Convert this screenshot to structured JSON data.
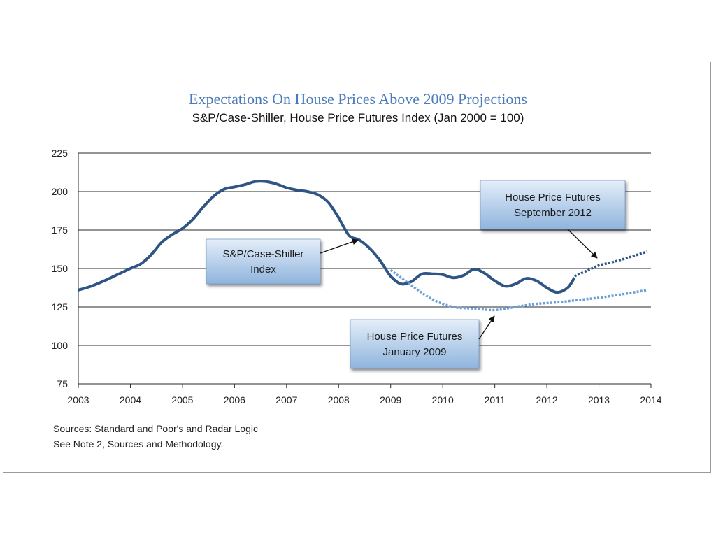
{
  "chart_data": {
    "type": "line",
    "title": "Expectations On House Prices Above 2009 Projections",
    "subtitle": "S&P/Case-Shiller, House Price Futures Index (Jan 2000 = 100)",
    "xlim": [
      2003,
      2014
    ],
    "ylim": [
      75,
      225
    ],
    "x_ticks": [
      2003,
      2004,
      2005,
      2006,
      2007,
      2008,
      2009,
      2010,
      2011,
      2012,
      2013,
      2014
    ],
    "y_ticks": [
      75,
      100,
      125,
      150,
      175,
      200,
      225
    ],
    "grid": "horizontal",
    "series": [
      {
        "name": "S&P/Case-Shiller Index",
        "style": "solid",
        "color": "#2f5585",
        "x": [
          2003.0,
          2003.25,
          2003.5,
          2003.75,
          2004.0,
          2004.2,
          2004.4,
          2004.6,
          2004.8,
          2005.0,
          2005.2,
          2005.4,
          2005.6,
          2005.8,
          2006.0,
          2006.2,
          2006.4,
          2006.6,
          2006.8,
          2007.0,
          2007.2,
          2007.4,
          2007.6,
          2007.8,
          2008.0,
          2008.2,
          2008.4,
          2008.6,
          2008.8,
          2009.0,
          2009.2,
          2009.4,
          2009.6,
          2009.8,
          2010.0,
          2010.2,
          2010.4,
          2010.6,
          2010.8,
          2011.0,
          2011.2,
          2011.4,
          2011.6,
          2011.8,
          2012.0,
          2012.2,
          2012.4,
          2012.53
        ],
        "values": [
          136,
          138.5,
          142,
          146,
          150,
          153,
          159,
          167,
          172,
          176,
          182,
          190,
          197,
          201.5,
          203,
          204.5,
          206.5,
          206.5,
          205,
          202.5,
          201,
          200,
          198,
          193,
          183,
          171.5,
          168.5,
          163,
          155,
          145,
          140,
          141.5,
          146.5,
          146.5,
          146,
          144,
          145.5,
          149.5,
          147,
          142,
          138.5,
          140,
          143.5,
          142,
          137.5,
          134.5,
          137.5,
          144
        ]
      },
      {
        "name": "House Price Futures January 2009",
        "style": "dotted",
        "color": "#6b9fd8",
        "x": [
          2009.0,
          2009.4,
          2009.8,
          2010.2,
          2010.6,
          2011.0,
          2011.4,
          2011.8,
          2012.2,
          2012.6,
          2013.0,
          2013.4,
          2013.93
        ],
        "values": [
          149,
          139,
          130,
          125,
          124,
          123,
          125,
          127,
          128,
          129.5,
          131,
          133,
          136
        ]
      },
      {
        "name": "House Price Futures September 2012",
        "style": "dotted",
        "color": "#2f5585",
        "x": [
          2012.53,
          2012.8,
          2013.0,
          2013.3,
          2013.6,
          2013.93
        ],
        "values": [
          145,
          149,
          152,
          154.5,
          157.5,
          161
        ]
      }
    ],
    "annotations": [
      {
        "lines": [
          "S&P/Case-Shiller",
          "Index"
        ]
      },
      {
        "lines": [
          "House Price Futures",
          "September 2012"
        ]
      },
      {
        "lines": [
          "House Price Futures",
          "January 2009"
        ]
      }
    ]
  },
  "sources": {
    "line1": "Sources:  Standard and Poor's and Radar Logic",
    "line2": "See Note 2, Sources and Methodology."
  },
  "colors": {
    "title": "#4a7ab8",
    "callout_top": "#e4eef9",
    "callout_bottom": "#8fb4dd"
  }
}
